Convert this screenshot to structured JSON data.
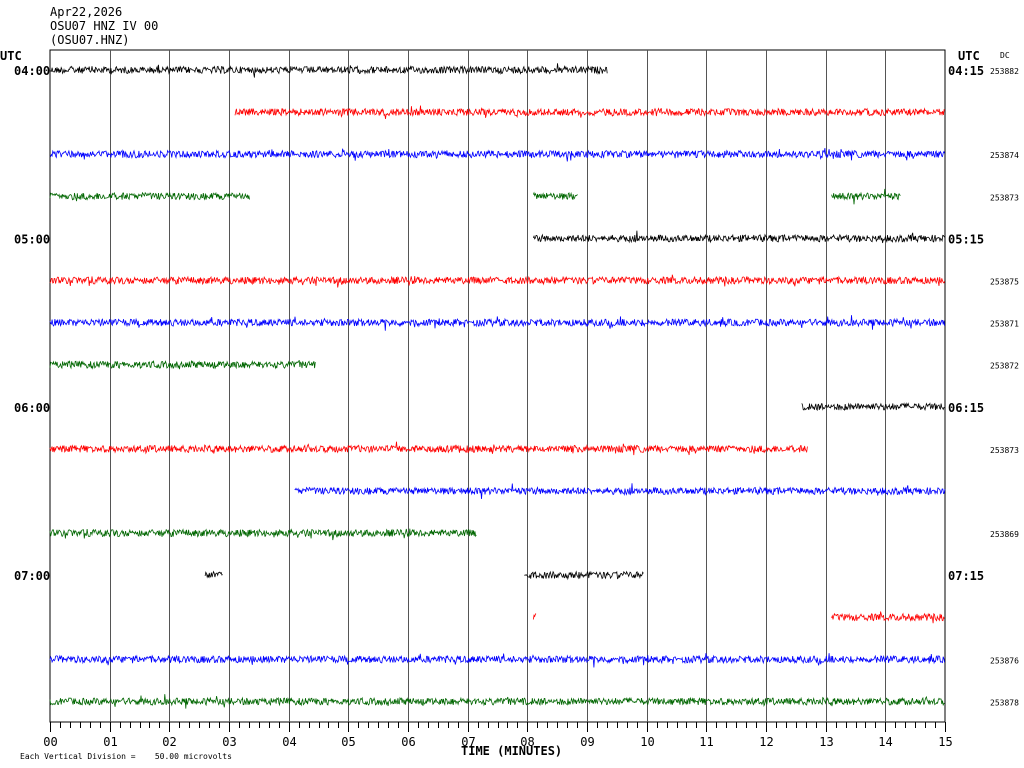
{
  "header": {
    "date": "Apr22,2026",
    "station_line": "OSU07 HNZ IV 00",
    "station_code": "(OSU07.HNZ)",
    "utc_left": "UTC",
    "utc_right": "UTC",
    "dc_label": "DC"
  },
  "footer": {
    "axis_title": "TIME (MINUTES)",
    "scale_note": "Each Vertical Division =    50.00 microvolts"
  },
  "chart_data": {
    "type": "line",
    "title": "OSU07 HNZ IV 00",
    "xlabel": "TIME (MINUTES)",
    "x_ticks": [
      "00",
      "01",
      "02",
      "03",
      "04",
      "05",
      "06",
      "07",
      "08",
      "09",
      "10",
      "11",
      "12",
      "13",
      "14",
      "15"
    ],
    "xlim": [
      0,
      15
    ],
    "grid": true,
    "colors": {
      "black": "#000000",
      "red": "#ff0000",
      "blue": "#0000ff",
      "green": "#006600"
    },
    "left_time_labels": [
      {
        "row": 0,
        "text": "04:00"
      },
      {
        "row": 4,
        "text": "05:00"
      },
      {
        "row": 8,
        "text": "06:00"
      },
      {
        "row": 12,
        "text": "07:00"
      }
    ],
    "right_time_labels": [
      {
        "row": 0,
        "text": "04:15"
      },
      {
        "row": 4,
        "text": "05:15"
      },
      {
        "row": 8,
        "text": "06:15"
      },
      {
        "row": 12,
        "text": "07:15"
      }
    ],
    "traces": [
      {
        "row": 0,
        "color": "black",
        "segments": [
          [
            0,
            9.35
          ]
        ],
        "dc": "253882"
      },
      {
        "row": 1,
        "color": "red",
        "segments": [
          [
            3.1,
            15
          ]
        ],
        "dc": ""
      },
      {
        "row": 2,
        "color": "blue",
        "segments": [
          [
            0,
            15
          ]
        ],
        "dc": "253874"
      },
      {
        "row": 3,
        "color": "green",
        "segments": [
          [
            0,
            3.35
          ],
          [
            8.1,
            8.85
          ],
          [
            13.1,
            14.25
          ]
        ],
        "dc": "253873"
      },
      {
        "row": 4,
        "color": "black",
        "segments": [
          [
            8.1,
            15
          ]
        ],
        "dc": ""
      },
      {
        "row": 5,
        "color": "red",
        "segments": [
          [
            0,
            15
          ]
        ],
        "dc": "253875"
      },
      {
        "row": 6,
        "color": "blue",
        "segments": [
          [
            0,
            15
          ]
        ],
        "dc": "253871"
      },
      {
        "row": 7,
        "color": "green",
        "segments": [
          [
            0,
            4.45
          ]
        ],
        "dc": "253872"
      },
      {
        "row": 8,
        "color": "black",
        "segments": [
          [
            12.6,
            15
          ]
        ],
        "dc": ""
      },
      {
        "row": 9,
        "color": "red",
        "segments": [
          [
            0,
            12.7
          ]
        ],
        "dc": "253873"
      },
      {
        "row": 10,
        "color": "blue",
        "segments": [
          [
            4.1,
            15
          ]
        ],
        "dc": ""
      },
      {
        "row": 11,
        "color": "green",
        "segments": [
          [
            0,
            7.15
          ]
        ],
        "dc": "253869"
      },
      {
        "row": 12,
        "color": "black",
        "segments": [
          [
            2.6,
            2.9
          ],
          [
            7.95,
            9.95
          ]
        ],
        "dc": ""
      },
      {
        "row": 13,
        "color": "red",
        "segments": [
          [
            8.1,
            8.15
          ],
          [
            13.1,
            15
          ]
        ],
        "dc": ""
      },
      {
        "row": 14,
        "color": "blue",
        "segments": [
          [
            0,
            15
          ]
        ],
        "dc": "253876"
      },
      {
        "row": 15,
        "color": "green",
        "segments": [
          [
            0,
            15
          ]
        ],
        "dc": "253878"
      }
    ]
  }
}
